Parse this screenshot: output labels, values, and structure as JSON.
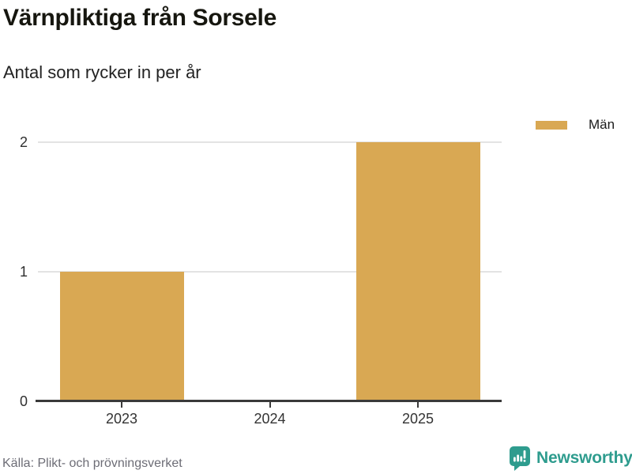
{
  "header": {
    "title": "Värnpliktiga från Sorsele",
    "subtitle": "Antal som rycker in per år"
  },
  "legend": {
    "items": [
      {
        "label": "Män",
        "color": "#D9A853"
      }
    ]
  },
  "chart_data": {
    "type": "bar",
    "categories": [
      "2023",
      "2024",
      "2025"
    ],
    "series": [
      {
        "name": "Män",
        "color": "#D9A853",
        "values": [
          1,
          0,
          2
        ]
      }
    ],
    "title": "Värnpliktiga från Sorsele",
    "subtitle": "Antal som rycker in per år",
    "xlabel": "",
    "ylabel": "",
    "ylim": [
      0,
      2
    ],
    "yticks": [
      0,
      1,
      2
    ],
    "grid": "horizontal",
    "gridline_color": "#E3E3E3",
    "axis_color": "#3a3a3a",
    "legend_position": "top-right"
  },
  "footer": {
    "source": "Källa: Plikt- och prövningsverket",
    "brand": "Newsworthy",
    "brand_color": "#2E9C8E",
    "logo_icon": "newsworthy-bar-chart-speech-bubble-icon"
  }
}
